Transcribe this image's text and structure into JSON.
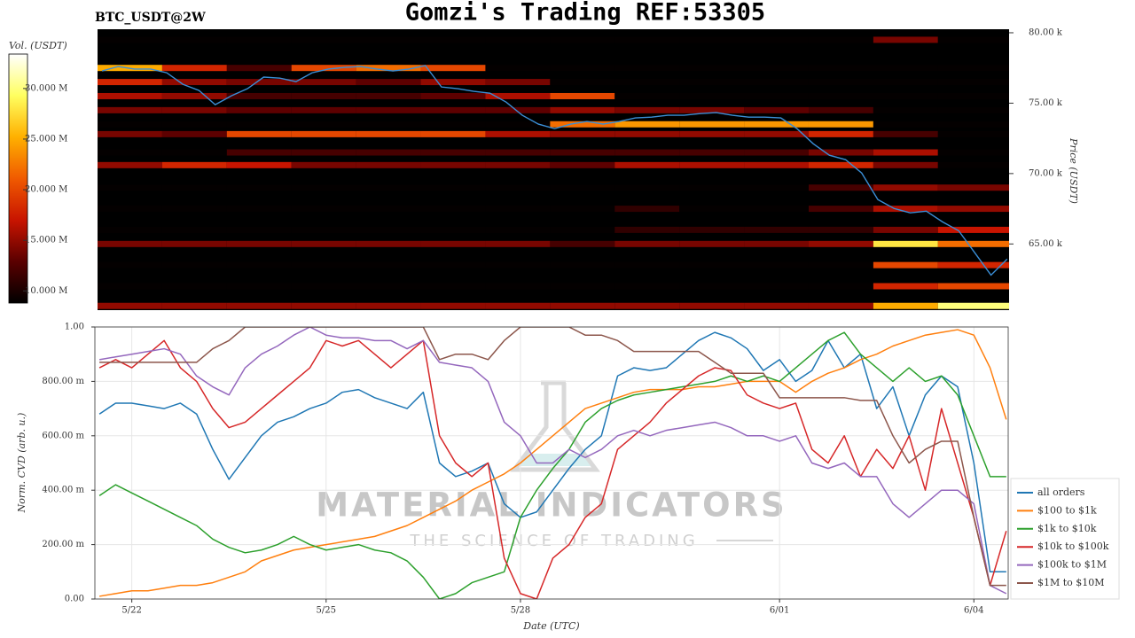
{
  "chart_data": [
    {
      "type": "heatmap",
      "title": "Gomzi's Trading REF:53305",
      "subtitle": "BTC_USDT@2W",
      "ylabel": "Price (USDT)",
      "colorbar_label": "Vol. (USDT)",
      "xlim": [
        0.43,
        14.53
      ],
      "ylim": [
        60300,
        80250
      ],
      "yticks": [
        {
          "value": 65000,
          "label": "65.00 k"
        },
        {
          "value": 70000,
          "label": "70.00 k"
        },
        {
          "value": 75000,
          "label": "75.00 k"
        },
        {
          "value": 80000,
          "label": "80.00 k"
        }
      ],
      "clim": [
        8.8,
        33.4
      ],
      "cticks": [
        {
          "value": 10,
          "label": "10.000 M"
        },
        {
          "value": 15,
          "label": "15.000 M"
        },
        {
          "value": 20,
          "label": "20.000 M"
        },
        {
          "value": 25,
          "label": "25.000 M"
        },
        {
          "value": 30,
          "label": "30.000 M"
        }
      ],
      "colormap": [
        "#000000",
        "#5a0000",
        "#c81400",
        "#f05a00",
        "#ffb000",
        "#ffff60",
        "#ffffff"
      ],
      "columns": [
        0.43,
        1.43,
        2.43,
        3.43,
        4.43,
        5.43,
        6.43,
        7.43,
        8.43,
        9.43,
        10.43,
        11.43,
        12.43,
        13.43
      ],
      "levels": [
        79500,
        77500,
        76500,
        75500,
        74500,
        73500,
        72800,
        71500,
        70600,
        69000,
        67500,
        66000,
        65000,
        63500,
        62000,
        60600
      ],
      "z": [
        [
          9,
          9,
          9,
          9,
          9,
          9,
          9,
          9,
          9,
          9,
          9,
          9,
          14,
          9
        ],
        [
          25,
          18,
          12,
          20,
          22,
          20,
          9,
          9,
          9,
          9,
          9,
          9,
          9,
          9
        ],
        [
          18,
          15,
          14,
          14,
          13,
          15,
          14,
          9,
          9,
          9,
          9,
          9,
          9,
          9
        ],
        [
          16,
          15,
          12,
          12,
          12,
          13,
          16,
          20,
          9,
          9,
          9,
          9,
          9,
          9
        ],
        [
          14,
          14,
          13,
          13,
          13,
          13,
          13,
          15,
          14,
          14,
          13,
          12,
          9,
          9
        ],
        [
          9,
          9,
          9,
          9,
          9,
          9,
          9,
          22,
          24,
          24,
          24,
          24,
          9,
          9
        ],
        [
          14,
          13,
          20,
          20,
          20,
          20,
          16,
          15,
          15,
          15,
          15,
          18,
          12,
          9
        ],
        [
          9,
          9,
          12,
          12,
          12,
          12,
          12,
          12,
          12,
          12,
          12,
          14,
          16,
          9
        ],
        [
          15,
          18,
          17,
          14,
          14,
          14,
          14,
          13,
          16,
          16,
          16,
          18,
          14,
          9
        ],
        [
          9,
          9,
          9,
          9,
          9,
          9,
          9,
          9,
          9,
          9,
          9,
          12,
          15,
          14
        ],
        [
          9,
          9,
          9,
          9,
          9,
          9,
          9,
          9,
          11,
          9,
          9,
          12,
          16,
          15
        ],
        [
          9,
          9,
          9,
          9,
          9,
          9,
          9,
          9,
          11,
          11,
          11,
          11,
          14,
          17
        ],
        [
          14,
          14,
          14,
          14,
          14,
          14,
          14,
          12,
          14,
          14,
          14,
          15,
          28,
          22
        ],
        [
          9,
          9,
          9,
          9,
          9,
          9,
          9,
          9,
          9,
          9,
          9,
          9,
          20,
          18
        ],
        [
          9,
          9,
          9,
          9,
          9,
          9,
          9,
          9,
          9,
          9,
          9,
          9,
          18,
          20
        ],
        [
          15,
          15,
          15,
          15,
          15,
          15,
          15,
          15,
          15,
          15,
          15,
          15,
          25,
          30
        ]
      ],
      "x": [
        0.5,
        0.75,
        1.0,
        1.25,
        1.5,
        1.75,
        2.0,
        2.25,
        2.5,
        2.75,
        3.0,
        3.25,
        3.5,
        3.75,
        4.0,
        4.25,
        4.5,
        4.75,
        5.0,
        5.25,
        5.5,
        5.75,
        6.0,
        6.25,
        6.5,
        6.75,
        7.0,
        7.25,
        7.5,
        7.75,
        8.0,
        8.25,
        8.5,
        8.75,
        9.0,
        9.25,
        9.5,
        9.75,
        10.0,
        10.25,
        10.5,
        10.75,
        11.0,
        11.25,
        11.5,
        11.75,
        12.0,
        12.25,
        12.5,
        12.75,
        13.0,
        13.25,
        13.5,
        13.75,
        14.0,
        14.25,
        14.5
      ],
      "price": {
        "color": "#3a8ed6",
        "values": [
          77290,
          77600,
          77420,
          77420,
          77160,
          76340,
          75900,
          74890,
          75520,
          76030,
          76850,
          76780,
          76530,
          77160,
          77420,
          77540,
          77600,
          77420,
          77290,
          77420,
          77670,
          76150,
          76030,
          75840,
          75710,
          75080,
          74140,
          73510,
          73190,
          73510,
          73700,
          73510,
          73700,
          73950,
          74010,
          74140,
          74140,
          74260,
          74330,
          74140,
          74010,
          74010,
          73950,
          73190,
          72120,
          71300,
          70990,
          70040,
          68150,
          67520,
          67210,
          67330,
          66570,
          65940,
          64370,
          62790,
          63930
        ]
      }
    },
    {
      "type": "line",
      "xlabel": "Date (UTC)",
      "ylabel": "Norm. CVD (arb. u.)",
      "watermark": "MATERIAL INDICATORS",
      "watermark_subtitle": "THE SCIENCE OF TRADING",
      "xlim": [
        0.43,
        14.53
      ],
      "xticks": [
        {
          "value": 1,
          "label": "5/22"
        },
        {
          "value": 4,
          "label": "5/25"
        },
        {
          "value": 7,
          "label": "5/28"
        },
        {
          "value": 11,
          "label": "6/01"
        },
        {
          "value": 14,
          "label": "6/04"
        }
      ],
      "ylim": [
        0,
        1
      ],
      "yticks": [
        {
          "value": 0,
          "label": "0.00"
        },
        {
          "value": 0.2,
          "label": "200.00 m"
        },
        {
          "value": 0.4,
          "label": "400.00 m"
        },
        {
          "value": 0.6,
          "label": "600.00 m"
        },
        {
          "value": 0.8,
          "label": "800.00 m"
        },
        {
          "value": 1,
          "label": "1.00"
        }
      ],
      "grid": true,
      "legend": "lower right",
      "x": [
        0.5,
        0.75,
        1.0,
        1.25,
        1.5,
        1.75,
        2.0,
        2.25,
        2.5,
        2.75,
        3.0,
        3.25,
        3.5,
        3.75,
        4.0,
        4.25,
        4.5,
        4.75,
        5.0,
        5.25,
        5.5,
        5.75,
        6.0,
        6.25,
        6.5,
        6.75,
        7.0,
        7.25,
        7.5,
        7.75,
        8.0,
        8.25,
        8.5,
        8.75,
        9.0,
        9.25,
        9.5,
        9.75,
        10.0,
        10.25,
        10.5,
        10.75,
        11.0,
        11.25,
        11.5,
        11.75,
        12.0,
        12.25,
        12.5,
        12.75,
        13.0,
        13.25,
        13.5,
        13.75,
        14.0,
        14.25,
        14.5
      ],
      "series": [
        {
          "name": "all orders",
          "color": "#1f77b4",
          "values": [
            0.68,
            0.72,
            0.72,
            0.71,
            0.7,
            0.72,
            0.68,
            0.55,
            0.44,
            0.52,
            0.6,
            0.65,
            0.67,
            0.7,
            0.72,
            0.76,
            0.77,
            0.74,
            0.72,
            0.7,
            0.76,
            0.5,
            0.45,
            0.47,
            0.5,
            0.35,
            0.3,
            0.32,
            0.4,
            0.48,
            0.55,
            0.6,
            0.82,
            0.85,
            0.84,
            0.85,
            0.9,
            0.95,
            0.98,
            0.96,
            0.92,
            0.84,
            0.88,
            0.8,
            0.84,
            0.95,
            0.85,
            0.9,
            0.7,
            0.78,
            0.6,
            0.75,
            0.82,
            0.78,
            0.5,
            0.1,
            0.1
          ]
        },
        {
          "name": "$100 to $1k",
          "color": "#ff7f0e",
          "values": [
            0.01,
            0.02,
            0.03,
            0.03,
            0.04,
            0.05,
            0.05,
            0.06,
            0.08,
            0.1,
            0.14,
            0.16,
            0.18,
            0.19,
            0.2,
            0.21,
            0.22,
            0.23,
            0.25,
            0.27,
            0.3,
            0.33,
            0.36,
            0.4,
            0.43,
            0.46,
            0.5,
            0.55,
            0.6,
            0.65,
            0.7,
            0.72,
            0.74,
            0.76,
            0.77,
            0.77,
            0.77,
            0.78,
            0.78,
            0.79,
            0.8,
            0.8,
            0.8,
            0.76,
            0.8,
            0.83,
            0.85,
            0.88,
            0.9,
            0.93,
            0.95,
            0.97,
            0.98,
            0.99,
            0.97,
            0.85,
            0.66
          ]
        },
        {
          "name": "$1k to $10k",
          "color": "#2ca02c",
          "values": [
            0.38,
            0.42,
            0.39,
            0.36,
            0.33,
            0.3,
            0.27,
            0.22,
            0.19,
            0.17,
            0.18,
            0.2,
            0.23,
            0.2,
            0.18,
            0.19,
            0.2,
            0.18,
            0.17,
            0.14,
            0.08,
            0.0,
            0.02,
            0.06,
            0.08,
            0.1,
            0.3,
            0.4,
            0.48,
            0.55,
            0.65,
            0.7,
            0.73,
            0.75,
            0.76,
            0.77,
            0.78,
            0.79,
            0.8,
            0.82,
            0.8,
            0.82,
            0.8,
            0.85,
            0.9,
            0.95,
            0.98,
            0.9,
            0.85,
            0.8,
            0.85,
            0.8,
            0.82,
            0.75,
            0.6,
            0.45,
            0.45
          ]
        },
        {
          "name": "$10k to $100k",
          "color": "#d62728",
          "values": [
            0.85,
            0.88,
            0.85,
            0.9,
            0.95,
            0.85,
            0.8,
            0.7,
            0.63,
            0.65,
            0.7,
            0.75,
            0.8,
            0.85,
            0.95,
            0.93,
            0.95,
            0.9,
            0.85,
            0.9,
            0.95,
            0.6,
            0.5,
            0.45,
            0.5,
            0.15,
            0.02,
            0.0,
            0.15,
            0.2,
            0.3,
            0.35,
            0.55,
            0.6,
            0.65,
            0.72,
            0.77,
            0.82,
            0.85,
            0.84,
            0.75,
            0.72,
            0.7,
            0.72,
            0.55,
            0.5,
            0.6,
            0.45,
            0.55,
            0.48,
            0.6,
            0.4,
            0.7,
            0.5,
            0.3,
            0.05,
            0.25
          ]
        },
        {
          "name": "$100k to $1M",
          "color": "#9467bd",
          "values": [
            0.88,
            0.89,
            0.9,
            0.91,
            0.92,
            0.9,
            0.82,
            0.78,
            0.75,
            0.85,
            0.9,
            0.93,
            0.97,
            1.0,
            0.97,
            0.96,
            0.96,
            0.95,
            0.95,
            0.92,
            0.95,
            0.87,
            0.86,
            0.85,
            0.8,
            0.65,
            0.6,
            0.5,
            0.5,
            0.55,
            0.52,
            0.55,
            0.6,
            0.62,
            0.6,
            0.62,
            0.63,
            0.64,
            0.65,
            0.63,
            0.6,
            0.6,
            0.58,
            0.6,
            0.5,
            0.48,
            0.5,
            0.45,
            0.45,
            0.35,
            0.3,
            0.35,
            0.4,
            0.4,
            0.35,
            0.05,
            0.02
          ]
        },
        {
          "name": "$1M to $10M",
          "color": "#8c564b",
          "values": [
            0.87,
            0.87,
            0.87,
            0.87,
            0.87,
            0.87,
            0.87,
            0.92,
            0.95,
            1.0,
            1.0,
            1.0,
            1.0,
            1.0,
            1.0,
            1.0,
            1.0,
            1.0,
            1.0,
            1.0,
            1.0,
            0.88,
            0.9,
            0.9,
            0.88,
            0.95,
            1.0,
            1.0,
            1.0,
            1.0,
            0.97,
            0.97,
            0.95,
            0.91,
            0.91,
            0.91,
            0.91,
            0.91,
            0.87,
            0.83,
            0.83,
            0.83,
            0.74,
            0.74,
            0.74,
            0.74,
            0.74,
            0.73,
            0.73,
            0.6,
            0.5,
            0.55,
            0.58,
            0.58,
            0.3,
            0.05,
            0.05
          ]
        }
      ]
    }
  ]
}
